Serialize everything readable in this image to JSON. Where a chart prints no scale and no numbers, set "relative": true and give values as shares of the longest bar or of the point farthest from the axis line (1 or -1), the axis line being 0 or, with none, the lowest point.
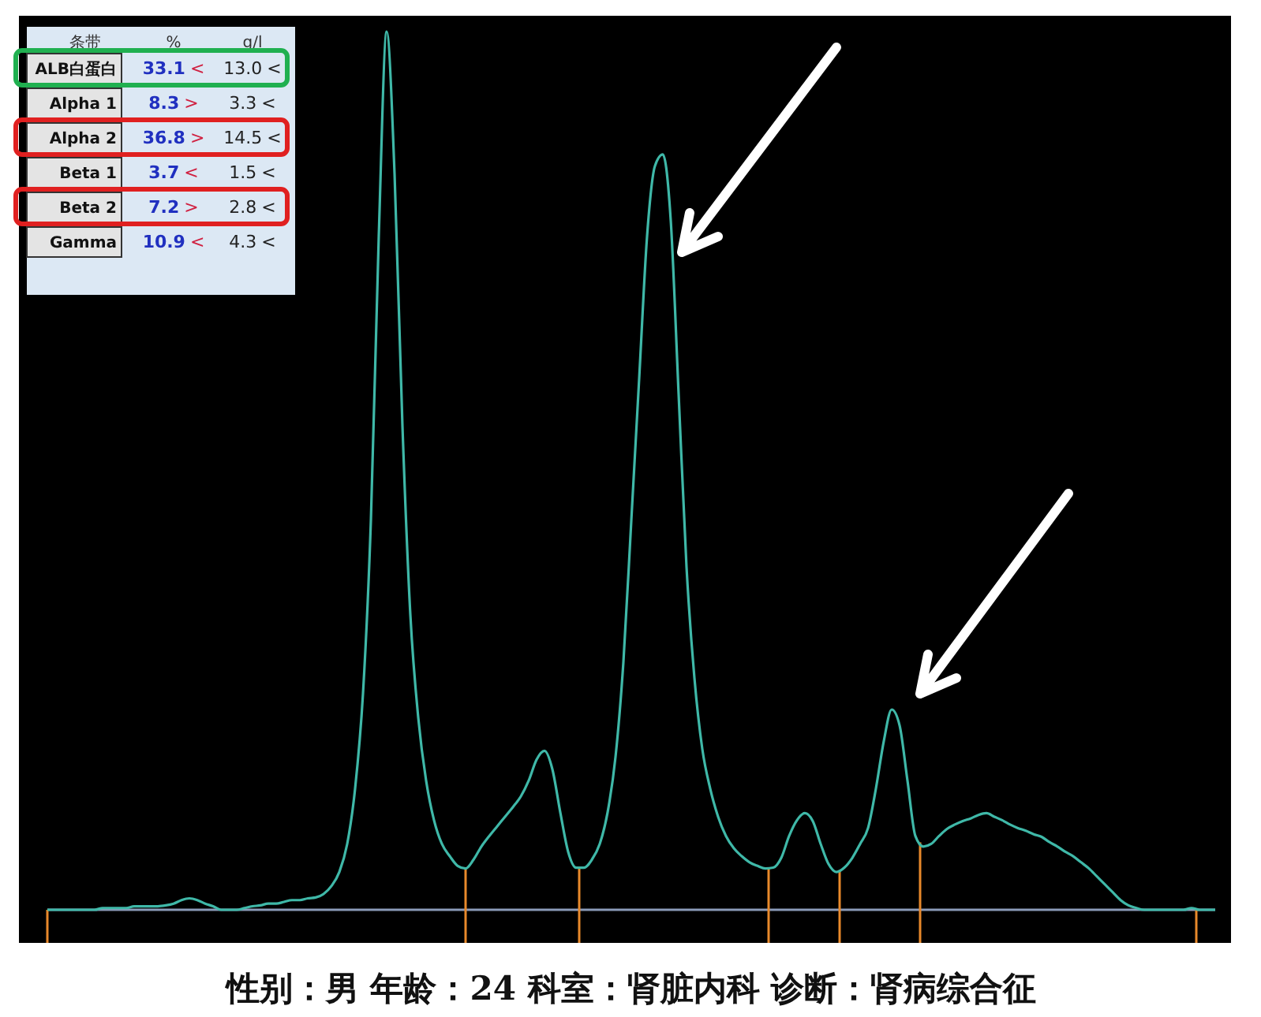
{
  "chart_data": {
    "type": "line",
    "relative": true,
    "marker": "none",
    "line_style": "solid",
    "categories": [
      null,
      null,
      null,
      null,
      null,
      null,
      null,
      null,
      null,
      null,
      null,
      null,
      null,
      null,
      null,
      null,
      null,
      null,
      null,
      null,
      null,
      null,
      null,
      null,
      null,
      null,
      null,
      null,
      null,
      null,
      null,
      null,
      null,
      null,
      null,
      null,
      null,
      null,
      null,
      null,
      null,
      null,
      null,
      null,
      null,
      null,
      null,
      null,
      null,
      null,
      null,
      null,
      null,
      null,
      null,
      null,
      null,
      null,
      null,
      null,
      null,
      null,
      null,
      null,
      null,
      null,
      null,
      null,
      null,
      null,
      null,
      null,
      null,
      null,
      null,
      null,
      null,
      null,
      null,
      null,
      null,
      null,
      null,
      null,
      null,
      null,
      null,
      null,
      null,
      null,
      null,
      null,
      null,
      null,
      null,
      null,
      null,
      null,
      null,
      null,
      null,
      null,
      null,
      null,
      null,
      null,
      null,
      null,
      null,
      null,
      null,
      null,
      null,
      null,
      null,
      null,
      null,
      null,
      null,
      null,
      null,
      null,
      null,
      null,
      null,
      null,
      null,
      null,
      null,
      null,
      null,
      null,
      null,
      null,
      null,
      null,
      null,
      null,
      null,
      null,
      null,
      null,
      null,
      null,
      null,
      null,
      null,
      null,
      null
    ],
    "series": [
      {
        "color": "#3fb8a8",
        "values": [
          0,
          0,
          0,
          0,
          0,
          0,
          0,
          0.002,
          0.002,
          0.002,
          0.002,
          0.004,
          0.004,
          0.004,
          0.004,
          0.005,
          0.007,
          0.011,
          0.013,
          0.011,
          0.007,
          0.004,
          0,
          0,
          0,
          0.002,
          0.004,
          0.005,
          0.007,
          0.007,
          0.009,
          0.011,
          0.011,
          0.013,
          0.014,
          0.018,
          0.027,
          0.043,
          0.075,
          0.138,
          0.246,
          0.443,
          0.767,
          1,
          0.838,
          0.551,
          0.336,
          0.219,
          0.147,
          0.102,
          0.075,
          0.061,
          0.05,
          0.047,
          0.057,
          0.072,
          0.084,
          0.095,
          0.106,
          0.117,
          0.129,
          0.147,
          0.171,
          0.181,
          0.16,
          0.111,
          0.066,
          0.048,
          0.048,
          0.057,
          0.075,
          0.111,
          0.174,
          0.282,
          0.443,
          0.605,
          0.767,
          0.847,
          0.86,
          0.785,
          0.587,
          0.39,
          0.264,
          0.183,
          0.138,
          0.106,
          0.084,
          0.07,
          0.061,
          0.054,
          0.05,
          0.047,
          0.048,
          0.059,
          0.084,
          0.102,
          0.11,
          0.101,
          0.075,
          0.052,
          0.043,
          0.048,
          0.059,
          0.075,
          0.093,
          0.138,
          0.192,
          0.228,
          0.21,
          0.147,
          0.084,
          0.072,
          0.075,
          0.084,
          0.092,
          0.097,
          0.101,
          0.104,
          0.108,
          0.11,
          0.106,
          0.102,
          0.097,
          0.093,
          0.09,
          0.086,
          0.083,
          0.077,
          0.072,
          0.066,
          0.061,
          0.054,
          0.047,
          0.038,
          0.029,
          0.02,
          0.011,
          0.005,
          0.002,
          0,
          0,
          0,
          0,
          0,
          0,
          0.002,
          0,
          0,
          0
        ]
      }
    ],
    "annotations": [
      "条带",
      "%",
      "g/l",
      "ALB白蛋白",
      "33.1 <",
      "13.0 <",
      "Alpha 1",
      "8.3 >",
      "3.3 <",
      "Alpha 2",
      "36.8 >",
      "14.5 <",
      "Beta 1",
      "3.7 <",
      "1.5 <",
      "Beta 2",
      "7.2 >",
      "2.8 <",
      "Gamma",
      "10.9 <",
      "4.3 <",
      "性别：男  年龄：24  科室：肾脏内科   诊断：肾病综合征"
    ]
  }
}
